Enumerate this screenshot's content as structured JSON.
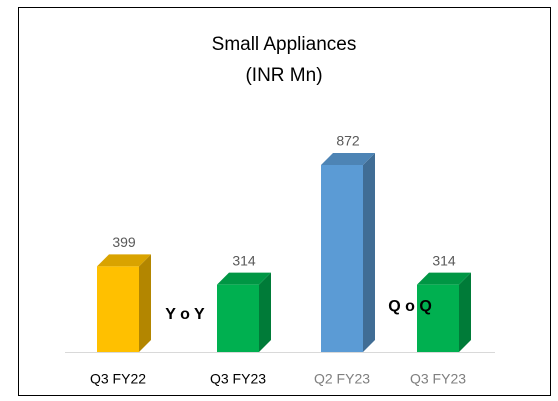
{
  "chart_data": {
    "type": "bar",
    "title": [
      "Small Appliances",
      "(INR Mn)"
    ],
    "categories": [
      "Q3 FY22",
      "Q3 FY23",
      "Q2 FY23",
      "Q3 FY23"
    ],
    "values": [
      399,
      314,
      872,
      314
    ],
    "colors": [
      "#ffc000",
      "#00b050",
      "#5b9bd5",
      "#00b050"
    ],
    "annotations": [
      "Y o Y",
      "Q o Q"
    ]
  }
}
